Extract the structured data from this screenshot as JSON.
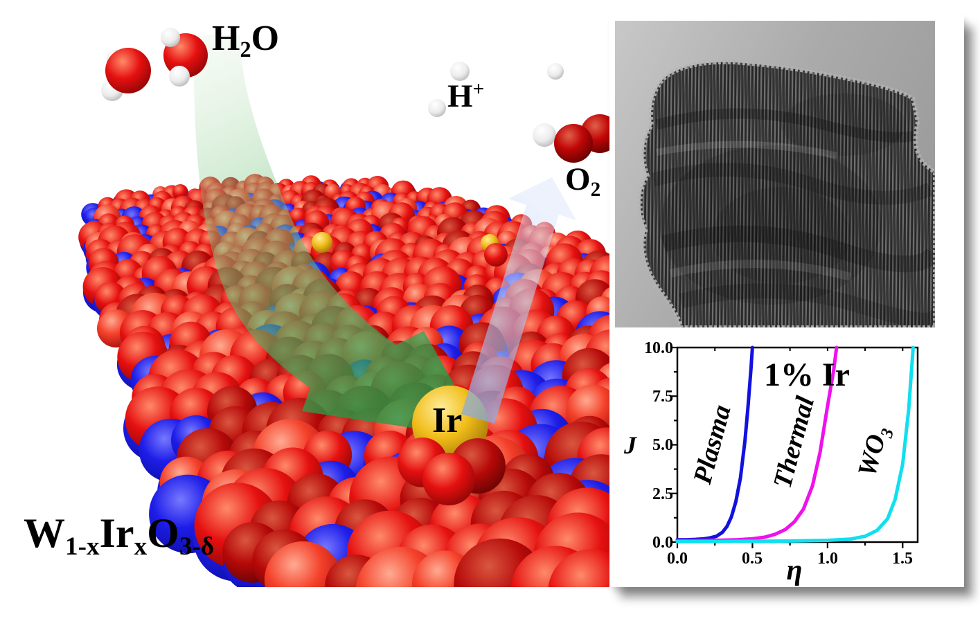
{
  "scene": {
    "h2o_label": {
      "base": "H",
      "sub": "2",
      "tail": "O"
    },
    "h_plus_label": {
      "base": "H",
      "sup": "+"
    },
    "o2_label": {
      "base": "O",
      "sub": "2"
    },
    "ir_label": "Ir",
    "formula": {
      "b1": "W",
      "s1": "1-x",
      "b2": "Ir",
      "s2": "x",
      "b3": "O",
      "s3": "3-δ"
    },
    "colors": {
      "oxygen_red_hi": "#ff8a6a",
      "oxygen_red": "#e51010",
      "oxygen_red_lo": "#7a0303",
      "tungsten_blue_hi": "#7878ff",
      "tungsten_blue": "#1d1de8",
      "tungsten_blue_lo": "#0a0a96",
      "iridium_gold_hi": "#ffed9a",
      "iridium_gold": "#f0bd1a",
      "iridium_gold_lo": "#8f6400",
      "hydrogen_white_hi": "#ffffff",
      "hydrogen_white": "#ececec",
      "hydrogen_white_lo": "#9f9f9f",
      "arrow_green_light": "#bfe3bc",
      "arrow_green_mid": "#7cc581",
      "arrow_green": "#259a46",
      "arrow_blue": "#7fa6e6",
      "arrow_blue_light": "#dbe6fa"
    }
  },
  "chart_data": {
    "type": "line",
    "title": "1% Ir",
    "xlabel": "η",
    "ylabel": "J",
    "xlim": [
      0,
      1.6
    ],
    "ylim": [
      0,
      10
    ],
    "grid": false,
    "legend": "rotated labels beside each curve",
    "x_ticks": [
      "0.0",
      "0.5",
      "1.0",
      "1.5"
    ],
    "y_ticks": [
      "10.0",
      "7.5",
      "5.0",
      "2.5",
      "0.0"
    ],
    "x_minor_step": 0.25,
    "y_minor_step": 1.25,
    "wo3_label": {
      "base": "WO",
      "sub": "3"
    },
    "series": [
      {
        "name": "Plasma",
        "color": "#1111e0",
        "x": [
          0,
          0.06,
          0.12,
          0.18,
          0.22,
          0.26,
          0.3,
          0.33,
          0.36,
          0.39,
          0.42,
          0.45,
          0.47,
          0.49,
          0.5
        ],
        "y": [
          0.12,
          0.12,
          0.14,
          0.17,
          0.22,
          0.3,
          0.5,
          0.8,
          1.3,
          2.1,
          3.3,
          5.2,
          6.9,
          8.9,
          10
        ]
      },
      {
        "name": "Thermal",
        "color": "#ee11ee",
        "x": [
          0,
          0.1,
          0.2,
          0.3,
          0.4,
          0.5,
          0.58,
          0.65,
          0.72,
          0.78,
          0.84,
          0.9,
          0.95,
          1.0,
          1.04,
          1.06
        ],
        "y": [
          0.08,
          0.08,
          0.09,
          0.1,
          0.12,
          0.17,
          0.25,
          0.4,
          0.65,
          1.05,
          1.7,
          2.9,
          4.6,
          7.0,
          8.8,
          10
        ]
      },
      {
        "name": "WO3",
        "color": "#11dff0",
        "x": [
          0,
          0.2,
          0.5,
          0.8,
          1.0,
          1.15,
          1.25,
          1.33,
          1.4,
          1.45,
          1.5,
          1.54,
          1.57
        ],
        "y": [
          0.03,
          0.03,
          0.04,
          0.06,
          0.09,
          0.15,
          0.3,
          0.6,
          1.2,
          2.2,
          4.0,
          6.8,
          10
        ]
      }
    ]
  }
}
